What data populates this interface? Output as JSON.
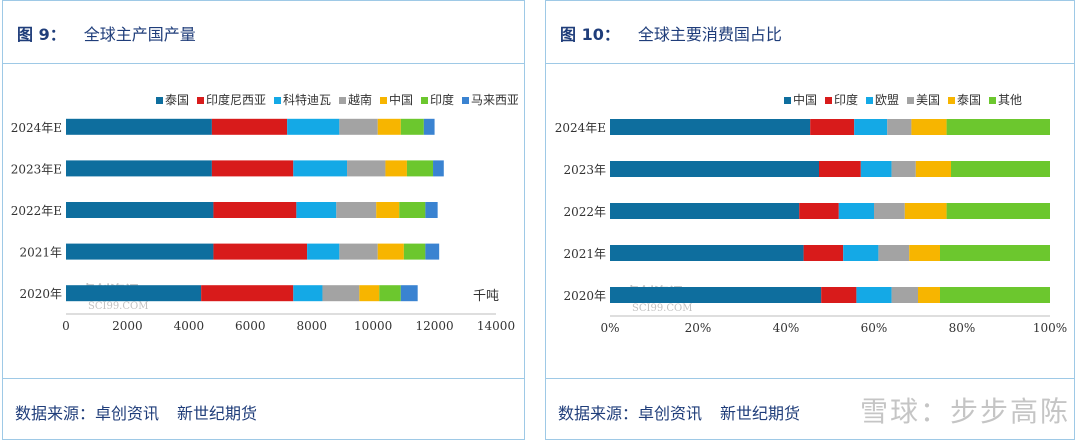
{
  "left": {
    "fig_label": "图 9：",
    "title": "全球主产国产量",
    "source_prefix": "数据来源：卓创资讯",
    "source_brand": "新世纪期货",
    "watermark": "卓创资讯",
    "watermark_sub": "SCI99.COM"
  },
  "right": {
    "fig_label": "图 10：",
    "title": "全球主要消费国占比",
    "source_prefix": "数据来源：卓创资讯",
    "source_brand": "新世纪期货",
    "watermark": "卓创资讯",
    "watermark_sub": "SCI99.COM"
  },
  "page_watermark": "雪球：步步高陈",
  "chart_data": [
    {
      "type": "bar",
      "orientation": "horizontal",
      "stacked": true,
      "categories": [
        "2020年",
        "2021年",
        "2022年E",
        "2023年E",
        "2024年E"
      ],
      "series": [
        {
          "name": "泰国",
          "color": "#0e6e9e",
          "values": [
            4400,
            4800,
            4800,
            4750,
            4750
          ]
        },
        {
          "name": "印度尼西亚",
          "color": "#d81b1b",
          "values": [
            3000,
            3050,
            2700,
            2650,
            2450
          ]
        },
        {
          "name": "科特迪瓦",
          "color": "#14a9e6",
          "values": [
            950,
            1050,
            1300,
            1750,
            1700
          ]
        },
        {
          "name": "越南",
          "color": "#a3a3a3",
          "values": [
            1200,
            1250,
            1300,
            1250,
            1250
          ]
        },
        {
          "name": "中国",
          "color": "#f7b500",
          "values": [
            650,
            850,
            750,
            700,
            750
          ]
        },
        {
          "name": "印度",
          "color": "#6cc72e",
          "values": [
            700,
            700,
            850,
            850,
            750
          ]
        },
        {
          "name": "马来西亚",
          "color": "#3a83d1",
          "values": [
            550,
            450,
            400,
            350,
            350
          ]
        }
      ],
      "xlim": [
        0,
        14000
      ],
      "xticks": [
        "0",
        "2000",
        "4000",
        "6000",
        "8000",
        "10000",
        "12000",
        "14000"
      ],
      "unit_label": "千吨",
      "legend_position": "top"
    },
    {
      "type": "bar",
      "orientation": "horizontal",
      "stacked": true,
      "categories": [
        "2020年",
        "2021年",
        "2022年",
        "2023年",
        "2024年E"
      ],
      "series": [
        {
          "name": "中国",
          "color": "#0e6e9e",
          "values": [
            48,
            44,
            43,
            47.5,
            45.5
          ]
        },
        {
          "name": "印度",
          "color": "#d81b1b",
          "values": [
            8,
            9,
            9,
            9.5,
            10
          ]
        },
        {
          "name": "欧盟",
          "color": "#14a9e6",
          "values": [
            8,
            8,
            8,
            7,
            7.5
          ]
        },
        {
          "name": "美国",
          "color": "#a3a3a3",
          "values": [
            6,
            7,
            7,
            5.5,
            5.5
          ]
        },
        {
          "name": "泰国",
          "color": "#f7b500",
          "values": [
            5,
            7,
            9.5,
            8,
            8
          ]
        },
        {
          "name": "其他",
          "color": "#6cc72e",
          "values": [
            25,
            25,
            23.5,
            22.5,
            23.5
          ]
        }
      ],
      "xlim": [
        0,
        100
      ],
      "xticks": [
        "0%",
        "20%",
        "40%",
        "60%",
        "80%",
        "100%"
      ],
      "legend_position": "top"
    }
  ]
}
